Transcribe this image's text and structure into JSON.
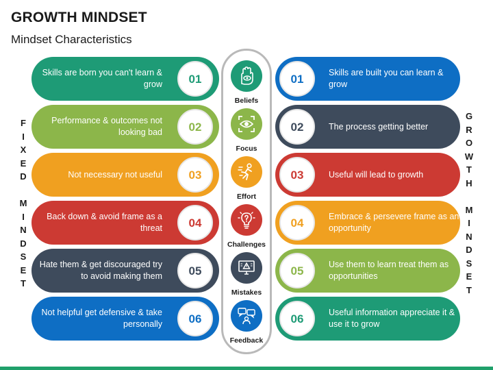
{
  "title": "GROWTH MINDSET",
  "subtitle": "Mindset Characteristics",
  "left_vertical": [
    "F",
    "I",
    "X",
    "E",
    "D",
    "",
    "M",
    "I",
    "N",
    "D",
    "S",
    "E",
    "T"
  ],
  "right_vertical": [
    "G",
    "R",
    "O",
    "W",
    "T",
    "H",
    "",
    "M",
    "I",
    "N",
    "D",
    "S",
    "E",
    "T"
  ],
  "fixed_items": [
    {
      "num": "01",
      "text": "Skills are born you can't learn & grow",
      "color": "#1e9b76"
    },
    {
      "num": "02",
      "text": "Performance & outcomes not looking bad",
      "color": "#8cb64a"
    },
    {
      "num": "03",
      "text": "Not necessary not useful",
      "color": "#f0a020"
    },
    {
      "num": "04",
      "text": "Back down & avoid frame as a threat",
      "color": "#cc3a33"
    },
    {
      "num": "05",
      "text": "Hate them & get discouraged try to avoid making them",
      "color": "#3e4b5c"
    },
    {
      "num": "06",
      "text": "Not helpful get defensive & take personally",
      "color": "#0e6ec4"
    }
  ],
  "growth_items": [
    {
      "num": "01",
      "text": "Skills are built you can learn & grow",
      "color": "#0e6ec4"
    },
    {
      "num": "02",
      "text": "The process getting better",
      "color": "#3e4b5c"
    },
    {
      "num": "03",
      "text": "Useful will lead to growth",
      "color": "#cc3a33"
    },
    {
      "num": "04",
      "text": "Embrace & persevere frame as an opportunity",
      "color": "#f0a020"
    },
    {
      "num": "05",
      "text": "Use them to learn treat them as opportunities",
      "color": "#8cb64a"
    },
    {
      "num": "06",
      "text": "Useful information appreciate it & use it to grow",
      "color": "#1e9b76"
    }
  ],
  "categories": [
    {
      "label": "Beliefs",
      "icon": "hand-eye-icon",
      "color": "#1e9b76"
    },
    {
      "label": "Focus",
      "icon": "eye-focus-icon",
      "color": "#8cb64a"
    },
    {
      "label": "Effort",
      "icon": "running-person-icon",
      "color": "#f0a020"
    },
    {
      "label": "Challenges",
      "icon": "lightbulb-question-icon",
      "color": "#cc3a33"
    },
    {
      "label": "Mistakes",
      "icon": "monitor-warning-icon",
      "color": "#3e4b5c"
    },
    {
      "label": "Feedback",
      "icon": "feedback-chat-icon",
      "color": "#0e6ec4"
    }
  ],
  "accent_color": "#1fa06a"
}
